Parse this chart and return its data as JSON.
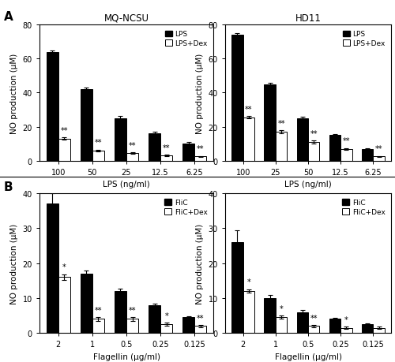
{
  "panel_A_left": {
    "title": "MQ-NCSU",
    "xlabel": "LPS (ng/ml)",
    "ylabel": "NO production (μM)",
    "ylim": [
      0,
      80
    ],
    "yticks": [
      0,
      20,
      40,
      60,
      80
    ],
    "categories": [
      "100",
      "50",
      "25",
      "12.5",
      "6.25"
    ],
    "lps_values": [
      64,
      42,
      25,
      16,
      10
    ],
    "lps_err": [
      1.0,
      1.0,
      1.5,
      1.0,
      1.0
    ],
    "dex_values": [
      13,
      6,
      4.5,
      3,
      2.5
    ],
    "dex_err": [
      0.8,
      0.5,
      0.5,
      0.4,
      0.3
    ],
    "sig_labels": [
      "**",
      "**",
      "**",
      "**",
      "**"
    ],
    "sig_on_dex": [
      true,
      true,
      true,
      true,
      true
    ]
  },
  "panel_A_right": {
    "title": "HD11",
    "xlabel": "LPS (ng/ml)",
    "ylabel": "NO production (μM)",
    "ylim": [
      0,
      80
    ],
    "yticks": [
      0,
      20,
      40,
      60,
      80
    ],
    "categories": [
      "100",
      "25",
      "50",
      "12.5",
      "6.25"
    ],
    "lps_values": [
      74,
      45,
      25,
      15,
      7
    ],
    "lps_err": [
      1.0,
      1.0,
      1.0,
      0.8,
      0.5
    ],
    "dex_values": [
      25.5,
      17,
      11,
      7,
      2.5
    ],
    "dex_err": [
      0.8,
      0.8,
      0.8,
      0.5,
      0.3
    ],
    "sig_labels": [
      "**",
      "**",
      "**",
      "**",
      "**"
    ],
    "sig_on_dex": [
      true,
      true,
      true,
      true,
      true
    ]
  },
  "panel_B_left": {
    "xlabel": "Flagellin (μg/ml)",
    "ylabel": "NO production (μM)",
    "ylim": [
      0,
      40
    ],
    "yticks": [
      0,
      10,
      20,
      30,
      40
    ],
    "categories": [
      "2",
      "1",
      "0.5",
      "0.25",
      "0.125"
    ],
    "flic_values": [
      37,
      17,
      12,
      8,
      4.5
    ],
    "flic_err": [
      3.0,
      0.8,
      0.8,
      0.5,
      0.4
    ],
    "dex_values": [
      16,
      4,
      4,
      2.5,
      2
    ],
    "dex_err": [
      0.8,
      0.5,
      0.5,
      0.4,
      0.3
    ],
    "sig_labels": [
      "*",
      "**",
      "**",
      "*",
      "**"
    ],
    "sig_on_dex": [
      true,
      true,
      true,
      true,
      true
    ]
  },
  "panel_B_right": {
    "xlabel": "Flagellin (μg/ml)",
    "ylabel": "NO production (μM)",
    "ylim": [
      0,
      40
    ],
    "yticks": [
      0,
      10,
      20,
      30,
      40
    ],
    "categories": [
      "2",
      "1",
      "0.5",
      "0.25",
      "0.125"
    ],
    "flic_values": [
      26,
      10,
      6,
      4,
      2.5
    ],
    "flic_err": [
      3.5,
      0.8,
      0.5,
      0.3,
      0.3
    ],
    "dex_values": [
      12,
      4.5,
      2,
      1.5,
      1.5
    ],
    "dex_err": [
      0.5,
      0.5,
      0.3,
      0.3,
      0.3
    ],
    "sig_labels": [
      "*",
      "*",
      "**",
      "*",
      ""
    ],
    "sig_on_dex": [
      true,
      true,
      true,
      true,
      false
    ]
  },
  "bar_width": 0.35,
  "black_color": "#000000",
  "white_color": "#ffffff",
  "edge_color": "#000000",
  "label_lps": "LPS",
  "label_lpsdex": "LPS+Dex",
  "label_flic": "FliC",
  "label_flicdex": "FliC+Dex",
  "panel_A_label": "A",
  "panel_B_label": "B"
}
